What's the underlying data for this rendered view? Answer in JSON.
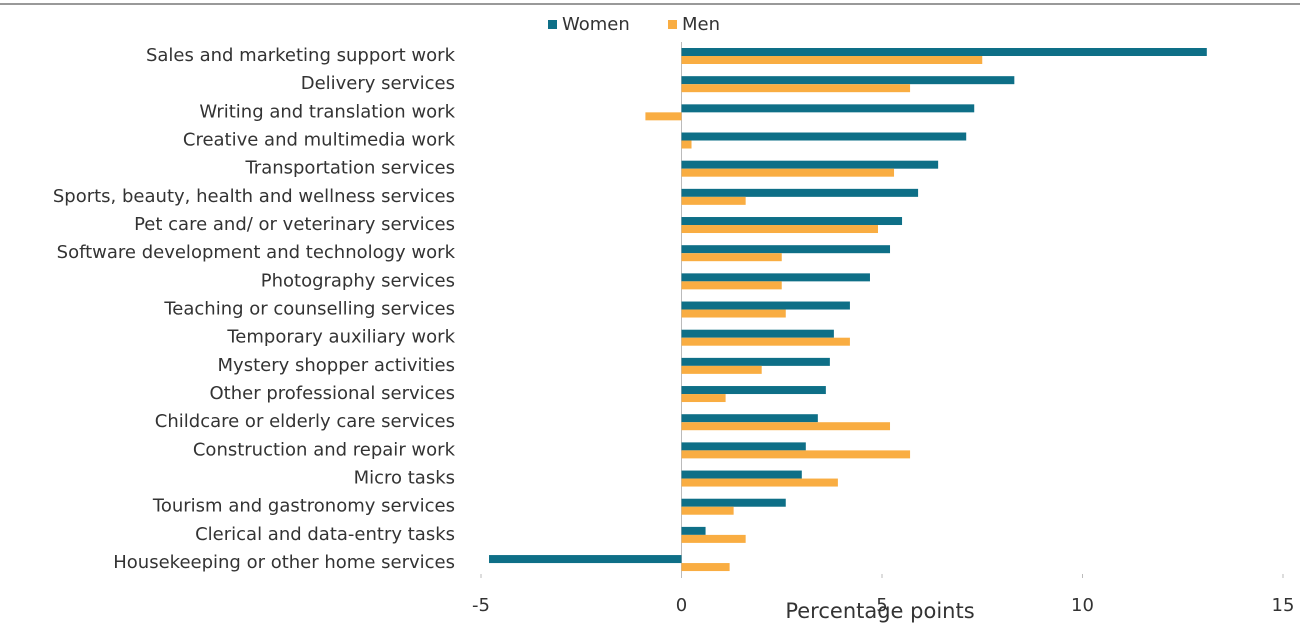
{
  "chart_data": {
    "type": "bar",
    "orientation": "horizontal",
    "x_label": "Percentage points",
    "categories": [
      "Sales and marketing support work",
      "Delivery services",
      "Writing and translation work",
      "Creative and multimedia work",
      "Transportation services",
      "Sports, beauty, health and wellness services",
      "Pet care and/ or veterinary services",
      "Software development and technology work",
      "Photography services",
      "Teaching or counselling services",
      "Temporary auxiliary work",
      "Mystery shopper activities",
      "Other professional services",
      "Childcare or elderly care services",
      "Construction and repair work",
      "Micro tasks",
      "Tourism and gastronomy services",
      "Clerical and data-entry tasks",
      "Housekeeping or other home services"
    ],
    "series": [
      {
        "name": "Women",
        "color": "#0e6f87",
        "values": [
          13.1,
          8.3,
          7.3,
          7.1,
          6.4,
          5.9,
          5.5,
          5.2,
          4.7,
          4.2,
          3.8,
          3.7,
          3.6,
          3.4,
          3.1,
          3.0,
          2.6,
          0.6,
          -4.8
        ]
      },
      {
        "name": "Men",
        "color": "#f9ad42",
        "values": [
          7.5,
          5.7,
          -0.9,
          0.25,
          5.3,
          1.6,
          4.9,
          2.5,
          2.5,
          2.6,
          4.2,
          2.0,
          1.1,
          5.2,
          5.7,
          3.9,
          1.3,
          1.6,
          1.2
        ]
      }
    ],
    "xlim": [
      -5,
      15
    ],
    "xticks": [
      -5,
      0,
      5,
      10,
      15
    ],
    "legend": "top"
  }
}
